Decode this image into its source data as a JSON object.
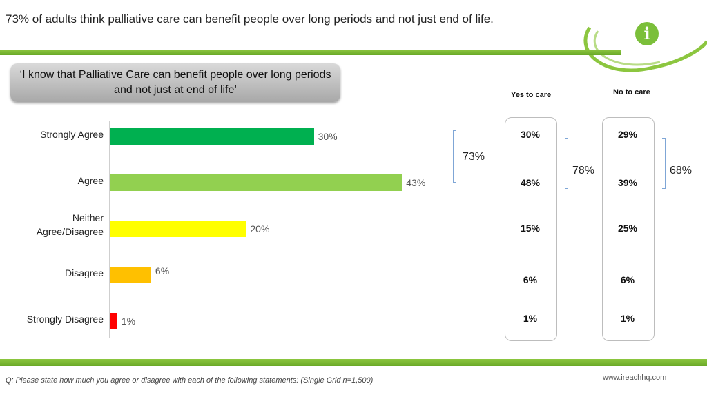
{
  "title": "73% of adults think palliative care can benefit people over long periods and not just end of life.",
  "quote": "‘I know that Palliative Care can benefit people over long periods and not just at end of life’",
  "logo_icon": "info-icon",
  "brand_color": "#7bbf3a",
  "chart_data": {
    "type": "bar",
    "orientation": "horizontal",
    "categories": [
      "Strongly Agree",
      "Agree",
      "Neither Agree/Disagree",
      "Disagree",
      "Strongly Disagree"
    ],
    "values": [
      30,
      43,
      20,
      6,
      1
    ],
    "value_labels": [
      "30%",
      "43%",
      "20%",
      "6%",
      "1%"
    ],
    "colors": [
      "#00b050",
      "#92d050",
      "#ffff00",
      "#ffc000",
      "#ff0000"
    ],
    "xlim": [
      0,
      60
    ],
    "total_agree_label": "73%",
    "groups": [
      {
        "name": "Yes to care",
        "values": [
          "30%",
          "48%",
          "15%",
          "6%",
          "1%"
        ],
        "total_agree": "78%"
      },
      {
        "name": "No to care",
        "values": [
          "29%",
          "39%",
          "25%",
          "6%",
          "1%"
        ],
        "total_agree": "68%"
      }
    ]
  },
  "footnote": "Q: Please state how much you agree or disagree with each of the following statements: (Single Grid n=1,500)",
  "website": "www.ireachhq.com"
}
